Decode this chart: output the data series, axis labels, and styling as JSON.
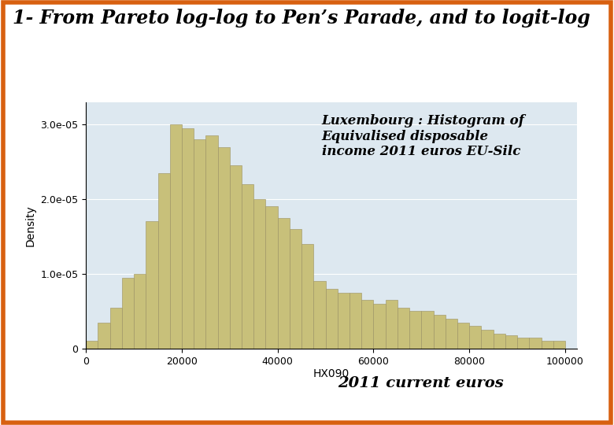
{
  "title": "1- From Pareto log-log to Pen’s Parade, and to logit-log",
  "annotation": "Luxembourg : Histogram of\nEquivalised disposable\nincome 2011 euros EU-Silc",
  "xlabel_sub": "HX090",
  "xlabel_main": "2011 current euros",
  "ylabel": "Density",
  "bar_color": "#C8C07A",
  "bar_edge_color": "#9A9060",
  "bg_color": "#DDE8F0",
  "outer_bg": "#FFFFFF",
  "border_color": "#D86010",
  "xlim": [
    0,
    102500
  ],
  "ylim": [
    0,
    3.3e-05
  ],
  "bin_width": 2500,
  "bar_heights": [
    1e-06,
    3.5e-06,
    5.5e-06,
    9.5e-06,
    1e-05,
    1.7e-05,
    2.35e-05,
    3e-05,
    2.95e-05,
    2.8e-05,
    2.85e-05,
    2.7e-05,
    2.45e-05,
    2.2e-05,
    2e-05,
    1.9e-05,
    1.75e-05,
    1.6e-05,
    1.4e-05,
    9e-06,
    8e-06,
    7.5e-06,
    7.5e-06,
    6.5e-06,
    6e-06,
    6.5e-06,
    5.5e-06,
    5e-06,
    5e-06,
    4.5e-06,
    4e-06,
    3.5e-06,
    3e-06,
    2.5e-06,
    2e-06,
    1.8e-06,
    1.5e-06,
    1.5e-06,
    1e-06,
    1e-06
  ],
  "xticks": [
    0,
    20000,
    40000,
    60000,
    80000,
    100000
  ],
  "yticks": [
    0,
    1e-05,
    2e-05,
    3e-05
  ],
  "ytick_labels": [
    "0",
    "1.0e-05",
    "2.0e-05",
    "3.0e-05"
  ],
  "title_fontsize": 17,
  "annotation_fontsize": 12,
  "axis_label_fontsize": 10,
  "tick_fontsize": 9,
  "euros_fontsize": 14
}
